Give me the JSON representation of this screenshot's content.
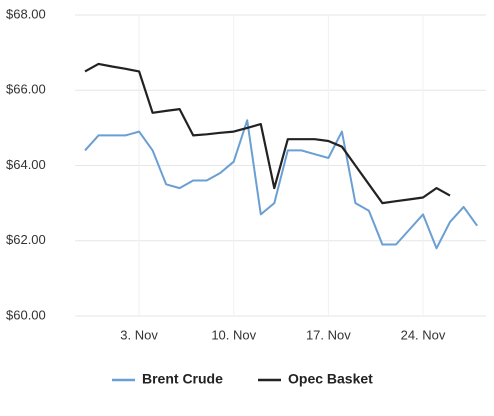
{
  "chart_data": {
    "type": "line",
    "categories": [
      null,
      null,
      null,
      null,
      "3. Nov",
      null,
      null,
      null,
      null,
      null,
      null,
      "10. Nov",
      null,
      null,
      null,
      null,
      null,
      null,
      "17. Nov",
      null,
      null,
      null,
      null,
      null,
      null,
      "24. Nov",
      null,
      null,
      null,
      null
    ],
    "series": [
      {
        "name": "Brent Crude",
        "color": "#6a9fd4",
        "values": [
          64.4,
          64.8,
          64.8,
          64.8,
          64.9,
          64.4,
          63.5,
          63.4,
          63.6,
          63.6,
          63.8,
          64.1,
          65.2,
          62.7,
          63.0,
          64.4,
          64.4,
          64.3,
          64.2,
          64.9,
          63.0,
          62.8,
          61.9,
          61.9,
          62.3,
          62.7,
          61.8,
          62.5,
          62.9,
          62.4
        ]
      },
      {
        "name": "Opec Basket",
        "color": "#222222",
        "values": [
          66.5,
          66.7,
          66.63,
          66.57,
          66.5,
          65.4,
          65.45,
          65.5,
          64.8,
          64.83,
          64.87,
          64.9,
          65.0,
          65.1,
          63.4,
          64.7,
          64.7,
          64.7,
          64.65,
          64.5,
          64.0,
          63.5,
          63.0,
          63.05,
          63.1,
          63.15,
          63.4,
          63.2,
          null,
          null
        ]
      }
    ],
    "ylim": [
      60,
      68
    ],
    "yticks": [
      {
        "value": 60,
        "label": "$60.00"
      },
      {
        "value": 62,
        "label": "$62.00"
      },
      {
        "value": 64,
        "label": "$64.00"
      },
      {
        "value": 66,
        "label": "$66.00"
      },
      {
        "value": 68,
        "label": "$68.00"
      }
    ],
    "grid": true,
    "legend": "bottom"
  }
}
